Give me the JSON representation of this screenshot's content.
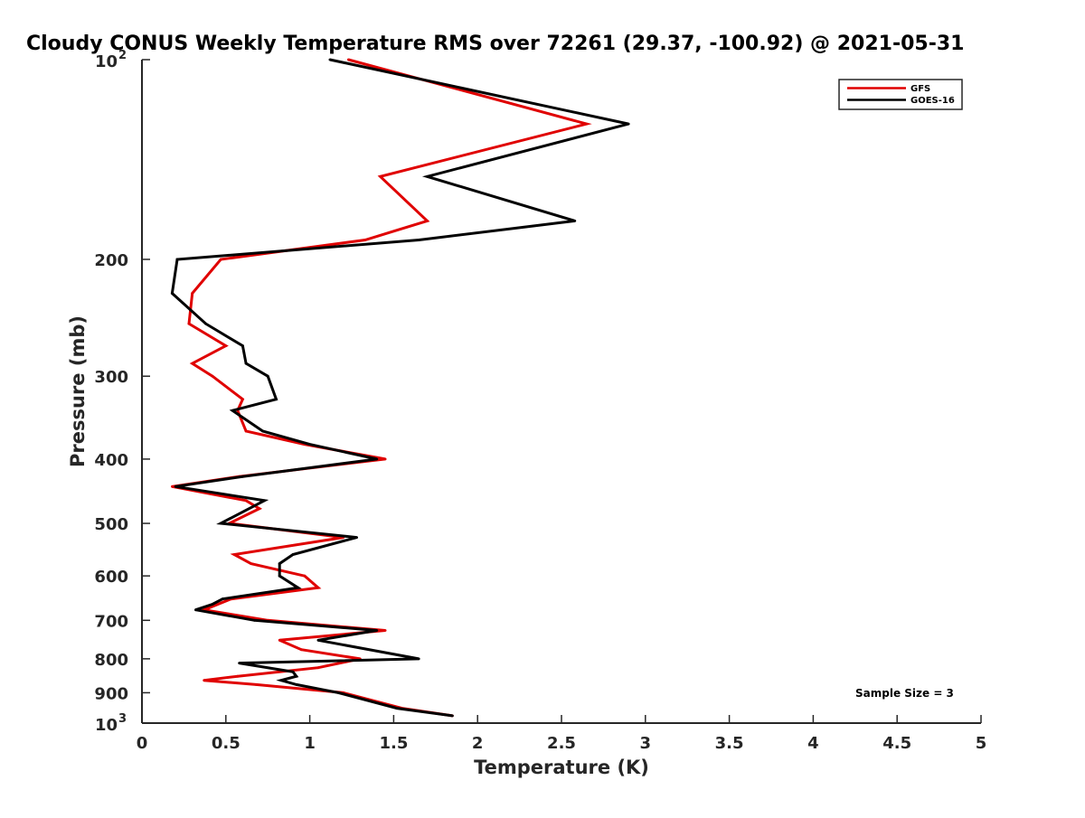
{
  "chart_data": {
    "type": "line",
    "title": "Cloudy CONUS Weekly Temperature RMS over 72261 (29.37, -100.92) @ 2021-05-31",
    "xlabel": "Temperature (K)",
    "ylabel": "Pressure (mb)",
    "xlim": [
      0,
      5
    ],
    "ylim": [
      100,
      1000
    ],
    "y_scale": "log",
    "y_reversed": true,
    "grid": false,
    "legend_position": "top-right",
    "x_ticks": [
      "0",
      "0.5",
      "1",
      "1.5",
      "2",
      "2.5",
      "3",
      "3.5",
      "4",
      "4.5",
      "5"
    ],
    "y_ticks": [
      {
        "value": 100,
        "base": "10",
        "exp": "2"
      },
      {
        "value": 200,
        "label": "200"
      },
      {
        "value": 300,
        "label": "300"
      },
      {
        "value": 400,
        "label": "400"
      },
      {
        "value": 500,
        "label": "500"
      },
      {
        "value": 600,
        "label": "600"
      },
      {
        "value": 700,
        "label": "700"
      },
      {
        "value": 800,
        "label": "800"
      },
      {
        "value": 900,
        "label": "900"
      },
      {
        "value": 1000,
        "base": "10",
        "exp": "3"
      }
    ],
    "series": [
      {
        "name": "GFS",
        "color": "#e00000",
        "points": [
          {
            "x": 1.23,
            "y": 100
          },
          {
            "x": 2.65,
            "y": 125
          },
          {
            "x": 1.42,
            "y": 150
          },
          {
            "x": 1.7,
            "y": 175
          },
          {
            "x": 1.33,
            "y": 187
          },
          {
            "x": 0.47,
            "y": 200
          },
          {
            "x": 0.3,
            "y": 225
          },
          {
            "x": 0.28,
            "y": 250
          },
          {
            "x": 0.5,
            "y": 270
          },
          {
            "x": 0.3,
            "y": 287
          },
          {
            "x": 0.42,
            "y": 300
          },
          {
            "x": 0.6,
            "y": 325
          },
          {
            "x": 0.57,
            "y": 338
          },
          {
            "x": 0.62,
            "y": 363
          },
          {
            "x": 0.97,
            "y": 380
          },
          {
            "x": 1.45,
            "y": 400
          },
          {
            "x": 0.58,
            "y": 425
          },
          {
            "x": 0.18,
            "y": 440
          },
          {
            "x": 0.62,
            "y": 462
          },
          {
            "x": 0.7,
            "y": 475
          },
          {
            "x": 0.52,
            "y": 500
          },
          {
            "x": 1.2,
            "y": 525
          },
          {
            "x": 0.55,
            "y": 557
          },
          {
            "x": 0.65,
            "y": 575
          },
          {
            "x": 0.97,
            "y": 600
          },
          {
            "x": 1.05,
            "y": 625
          },
          {
            "x": 0.53,
            "y": 650
          },
          {
            "x": 0.37,
            "y": 675
          },
          {
            "x": 0.75,
            "y": 700
          },
          {
            "x": 1.45,
            "y": 725
          },
          {
            "x": 0.82,
            "y": 750
          },
          {
            "x": 0.95,
            "y": 775
          },
          {
            "x": 1.3,
            "y": 800
          },
          {
            "x": 1.05,
            "y": 825
          },
          {
            "x": 0.57,
            "y": 850
          },
          {
            "x": 0.37,
            "y": 862
          },
          {
            "x": 0.68,
            "y": 875
          },
          {
            "x": 1.2,
            "y": 900
          },
          {
            "x": 1.55,
            "y": 950
          },
          {
            "x": 1.85,
            "y": 975
          }
        ]
      },
      {
        "name": "GOES-16",
        "color": "#000000",
        "points": [
          {
            "x": 1.12,
            "y": 100
          },
          {
            "x": 2.9,
            "y": 125
          },
          {
            "x": 1.7,
            "y": 150
          },
          {
            "x": 2.58,
            "y": 175
          },
          {
            "x": 1.65,
            "y": 187
          },
          {
            "x": 0.21,
            "y": 200
          },
          {
            "x": 0.18,
            "y": 225
          },
          {
            "x": 0.38,
            "y": 250
          },
          {
            "x": 0.6,
            "y": 270
          },
          {
            "x": 0.62,
            "y": 287
          },
          {
            "x": 0.75,
            "y": 300
          },
          {
            "x": 0.8,
            "y": 325
          },
          {
            "x": 0.54,
            "y": 338
          },
          {
            "x": 0.72,
            "y": 363
          },
          {
            "x": 1.0,
            "y": 380
          },
          {
            "x": 1.4,
            "y": 400
          },
          {
            "x": 0.6,
            "y": 425
          },
          {
            "x": 0.2,
            "y": 440
          },
          {
            "x": 0.73,
            "y": 462
          },
          {
            "x": 0.47,
            "y": 500
          },
          {
            "x": 1.28,
            "y": 525
          },
          {
            "x": 0.9,
            "y": 557
          },
          {
            "x": 0.82,
            "y": 575
          },
          {
            "x": 0.82,
            "y": 600
          },
          {
            "x": 0.93,
            "y": 625
          },
          {
            "x": 0.48,
            "y": 650
          },
          {
            "x": 0.42,
            "y": 662
          },
          {
            "x": 0.32,
            "y": 675
          },
          {
            "x": 0.67,
            "y": 700
          },
          {
            "x": 1.4,
            "y": 725
          },
          {
            "x": 1.05,
            "y": 750
          },
          {
            "x": 1.65,
            "y": 800
          },
          {
            "x": 0.58,
            "y": 812
          },
          {
            "x": 0.9,
            "y": 837
          },
          {
            "x": 0.92,
            "y": 850
          },
          {
            "x": 0.83,
            "y": 862
          },
          {
            "x": 0.92,
            "y": 875
          },
          {
            "x": 1.17,
            "y": 900
          },
          {
            "x": 1.52,
            "y": 950
          },
          {
            "x": 1.85,
            "y": 975
          }
        ]
      }
    ],
    "annotations": [
      {
        "text": "Sample Size = 3",
        "position": "bottom-right"
      }
    ]
  }
}
